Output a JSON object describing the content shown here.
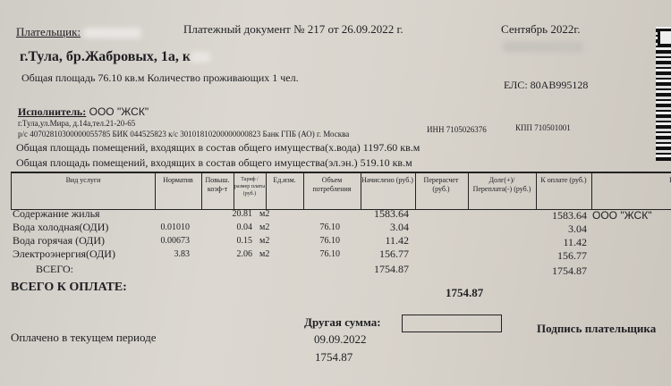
{
  "header": {
    "payer_label": "Плательщик:",
    "doc_title": "Платежный документ № 217 от 26.09.2022 г.",
    "period": "Сентябрь 2022г.",
    "address": "г.Тула, бр.Жабровых, 1а, к",
    "area_line": "Общая площадь 76.10 кв.м  Количество проживающих   1 чел.",
    "els": "ЕЛС: 80АВ995128"
  },
  "executor": {
    "label": "Исполнитель:",
    "name": " ООО \"ЖСК\"",
    "address": "г.Тула,ул.Мира, д.14а,тел.21-20-65",
    "bank": "р/с 40702810300000055785 БИК 044525823 к/с 30101810200000000823 Банк ГПБ (АО) г. Москва",
    "inn": "ИНН 7105026376",
    "kpp": "КПП 710501001",
    "common_water": "Общая площадь помещений, входящих в состав общего имущества(х.вода)   1197.60 кв.м",
    "common_el": "Общая площадь помещений, входящих в состав общего имущества(эл.эн.) 519.10 кв.м"
  },
  "table": {
    "columns": [
      "Вид услуги",
      "Норматив",
      "Повыш. коэф-т",
      "Тариф /размер платы (руб.)",
      "Ед.изм.",
      "Объем потребления",
      "Начислено (руб.)",
      "Перерасчет (руб.)",
      "Долг(+)/ Переплата(-) (руб.)",
      "К оплате (руб.)",
      "По"
    ],
    "rows": [
      {
        "service": "Содержание жилья",
        "norm": "",
        "tariff": "20.81",
        "unit": "м2",
        "volume": "",
        "charged": "1583.64",
        "topay": "1583.64",
        "recipient": "ООО \"ЖСК\""
      },
      {
        "service": "Вода холодная(ОДИ)",
        "norm": "0.01010",
        "tariff": "0.04",
        "unit": "м2",
        "volume": "76.10",
        "charged": "3.04",
        "topay": "3.04",
        "recipient": ""
      },
      {
        "service": "Вода горячая (ОДИ)",
        "norm": "0.00673",
        "tariff": "0.15",
        "unit": "м2",
        "volume": "76.10",
        "charged": "11.42",
        "topay": "11.42",
        "recipient": ""
      },
      {
        "service": "Электроэнергия(ОДИ)",
        "norm": "3.83",
        "tariff": "2.06",
        "unit": "м2",
        "volume": "76.10",
        "charged": "156.77",
        "topay": "156.77",
        "recipient": ""
      }
    ],
    "total_label": "ВСЕГО:",
    "total_charged": "1754.87",
    "total_topay": "1754.87"
  },
  "footer": {
    "grand_total_label": "ВСЕГО К ОПЛАТЕ:",
    "grand_total": "1754.87",
    "other_sum_label": "Другая сумма:",
    "paid_label": "Оплачено в текущем периоде",
    "paid_date": "09.09.2022",
    "paid_amount": "1754.87",
    "signature_label": "Подпись плательщика"
  }
}
